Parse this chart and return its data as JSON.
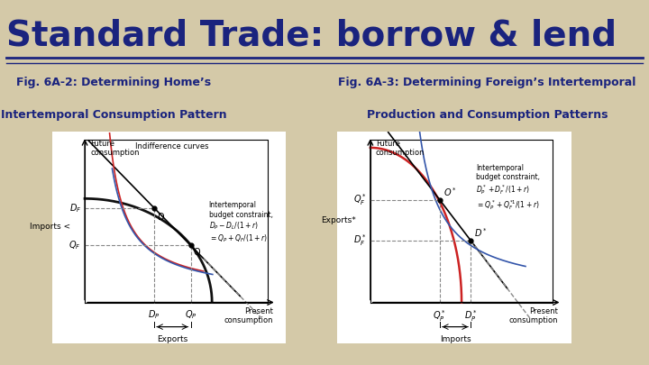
{
  "bg_color": "#d4c9a8",
  "title_text": "Standard Trade: borrow & lend",
  "title_color": "#1a237e",
  "title_fontsize": 28,
  "fig1_title_line1": "Fig. 6A-2: Determining Home’s",
  "fig1_title_line2": "Intertemporal Consumption Pattern",
  "fig2_title_line1": "Fig. 6A-3: Determining Foreign’s Intertemporal",
  "fig2_title_line2": "Production and Consumption Patterns",
  "subtitle_color": "#1a237e",
  "subtitle_fontsize": 9,
  "graph_bg": "#ffffff",
  "curve_color_red": "#cc2222",
  "curve_color_blue": "#3355aa",
  "dashed_color": "#888888",
  "curve_color_black": "#111111"
}
